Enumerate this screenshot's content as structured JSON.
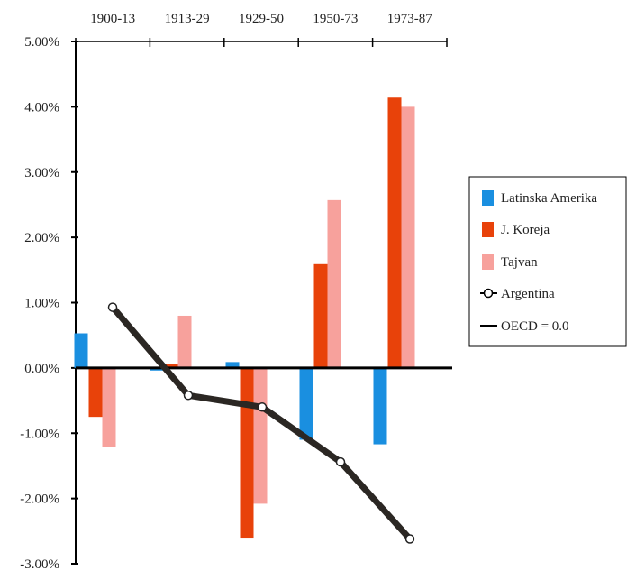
{
  "chart_data": {
    "type": "bar",
    "title": "",
    "xlabel": "",
    "ylabel": "",
    "categories": [
      "1900-13",
      "1913-29",
      "1929-50",
      "1950-73",
      "1973-87"
    ],
    "y_ticks": [
      "5.00%",
      "4.00%",
      "3.00%",
      "2.00%",
      "1.00%",
      "0.00%",
      "-1.00%",
      "-2.00%",
      "-3.00%"
    ],
    "ylim": [
      -3,
      5
    ],
    "grid": false,
    "legend_position": "right",
    "series": [
      {
        "name": "Latinska Amerika",
        "kind": "bar",
        "color": "#1a8fe0",
        "values": [
          0.53,
          -0.04,
          0.09,
          -1.1,
          -1.17
        ]
      },
      {
        "name": "J. Koreja",
        "kind": "bar",
        "color": "#e8420a",
        "values": [
          -0.75,
          0.06,
          -2.6,
          1.59,
          4.14
        ]
      },
      {
        "name": "Tajvan",
        "kind": "bar",
        "color": "#f7a19c",
        "values": [
          -1.21,
          0.8,
          -2.08,
          2.57,
          4.0
        ]
      },
      {
        "name": "Argentina",
        "kind": "line-marker",
        "color": "#222222",
        "values": [
          0.93,
          -0.42,
          -0.6,
          -1.44,
          -2.62
        ]
      },
      {
        "name": "OECD = 0.0",
        "kind": "line",
        "color": "#000000",
        "values": [
          0,
          0,
          0,
          0,
          0
        ]
      }
    ]
  }
}
